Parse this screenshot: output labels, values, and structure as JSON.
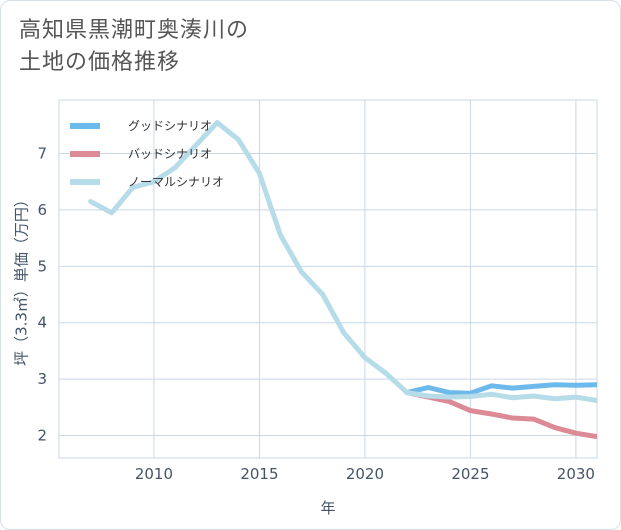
{
  "title_lines": [
    "高知県黒潮町奥湊川の",
    "土地の価格推移"
  ],
  "colors": {
    "good": "#6cb9ec",
    "bad": "#dc8a95",
    "normal": "#b6dbe9",
    "grid": "#c9d8e6",
    "axis_text": "#44546a"
  },
  "chart_data": {
    "type": "line",
    "title": "高知県黒潮町奥湊川の土地の価格推移",
    "xlabel": "年",
    "ylabel": "坪（3.3㎡）単価（万円）",
    "xlim": [
      2005.5,
      2031
    ],
    "ylim": [
      1.6,
      7.95
    ],
    "x_ticks": [
      2010,
      2015,
      2020,
      2025,
      2030
    ],
    "y_ticks": [
      2,
      3,
      4,
      5,
      6,
      7
    ],
    "legend_position": "top-left",
    "series": [
      {
        "name": "グッドシナリオ",
        "key": "good",
        "x": [
          2022,
          2023,
          2024,
          2025,
          2026,
          2027,
          2028,
          2029,
          2030,
          2031
        ],
        "values": [
          2.76,
          2.85,
          2.76,
          2.75,
          2.88,
          2.84,
          2.87,
          2.9,
          2.89,
          2.9
        ]
      },
      {
        "name": "バッドシナリオ",
        "key": "bad",
        "x": [
          2022,
          2023,
          2024,
          2025,
          2026,
          2027,
          2028,
          2029,
          2030,
          2031
        ],
        "values": [
          2.76,
          2.68,
          2.6,
          2.44,
          2.38,
          2.31,
          2.29,
          2.14,
          2.04,
          1.98
        ]
      },
      {
        "name": "ノーマルシナリオ",
        "key": "normal",
        "x": [
          2007,
          2008,
          2009,
          2010,
          2011,
          2012,
          2013,
          2014,
          2015,
          2016,
          2017,
          2018,
          2019,
          2020,
          2021,
          2022,
          2023,
          2024,
          2025,
          2026,
          2027,
          2028,
          2029,
          2030,
          2031
        ],
        "values": [
          6.15,
          5.95,
          6.4,
          6.5,
          6.75,
          7.15,
          7.55,
          7.25,
          6.65,
          5.55,
          4.9,
          4.5,
          3.82,
          3.38,
          3.1,
          2.76,
          2.7,
          2.68,
          2.69,
          2.73,
          2.67,
          2.7,
          2.65,
          2.68,
          2.62
        ]
      }
    ]
  }
}
